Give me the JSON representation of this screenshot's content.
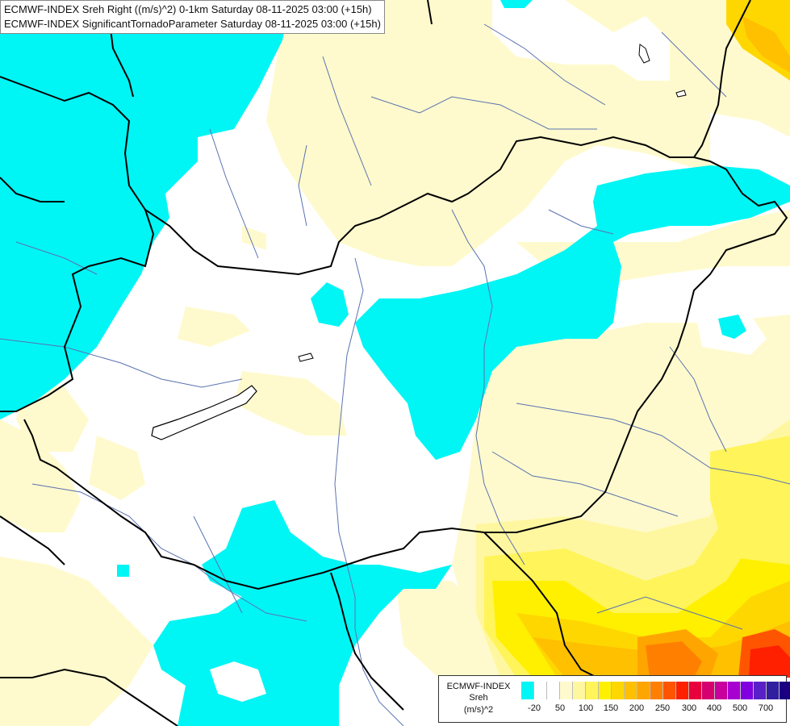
{
  "title": {
    "line1": "ECMWF-INDEX Sreh Right ((m/s)^2) 0-1km Saturday 08-11-2025 03:00 (+15h)",
    "line2": "ECMWF-INDEX SignificantTornadoParameter Saturday 08-11-2025 03:00 (+15h)"
  },
  "legend": {
    "label_line1": "ECMWF-INDEX",
    "label_line2": "Sreh",
    "label_line3": "(m/s)^2",
    "colors": [
      "#00f5f5",
      "#ffffff",
      "#ffffff",
      "#fffacd",
      "#fff7a0",
      "#fff45a",
      "#fff000",
      "#ffd700",
      "#ffc000",
      "#ffa500",
      "#ff8000",
      "#ff5500",
      "#ff2000",
      "#e8003c",
      "#d6006e",
      "#c8009c",
      "#a800d0",
      "#8000e0",
      "#5a20c8",
      "#3020a0",
      "#1a0080"
    ],
    "ticks": [
      "-20",
      "50",
      "100",
      "150",
      "200",
      "250",
      "300",
      "400",
      "500",
      "700"
    ]
  },
  "map": {
    "colors": {
      "cyan": "#00f5f5",
      "pale_yellow": "#fffacd",
      "light_yellow": "#fff7a0",
      "yellow": "#ffee00",
      "gold": "#ffd700",
      "orange": "#ffa500",
      "dark_orange": "#ff7a00",
      "red": "#ff2a00",
      "border": "#000000",
      "river": "#5a72b0"
    }
  }
}
